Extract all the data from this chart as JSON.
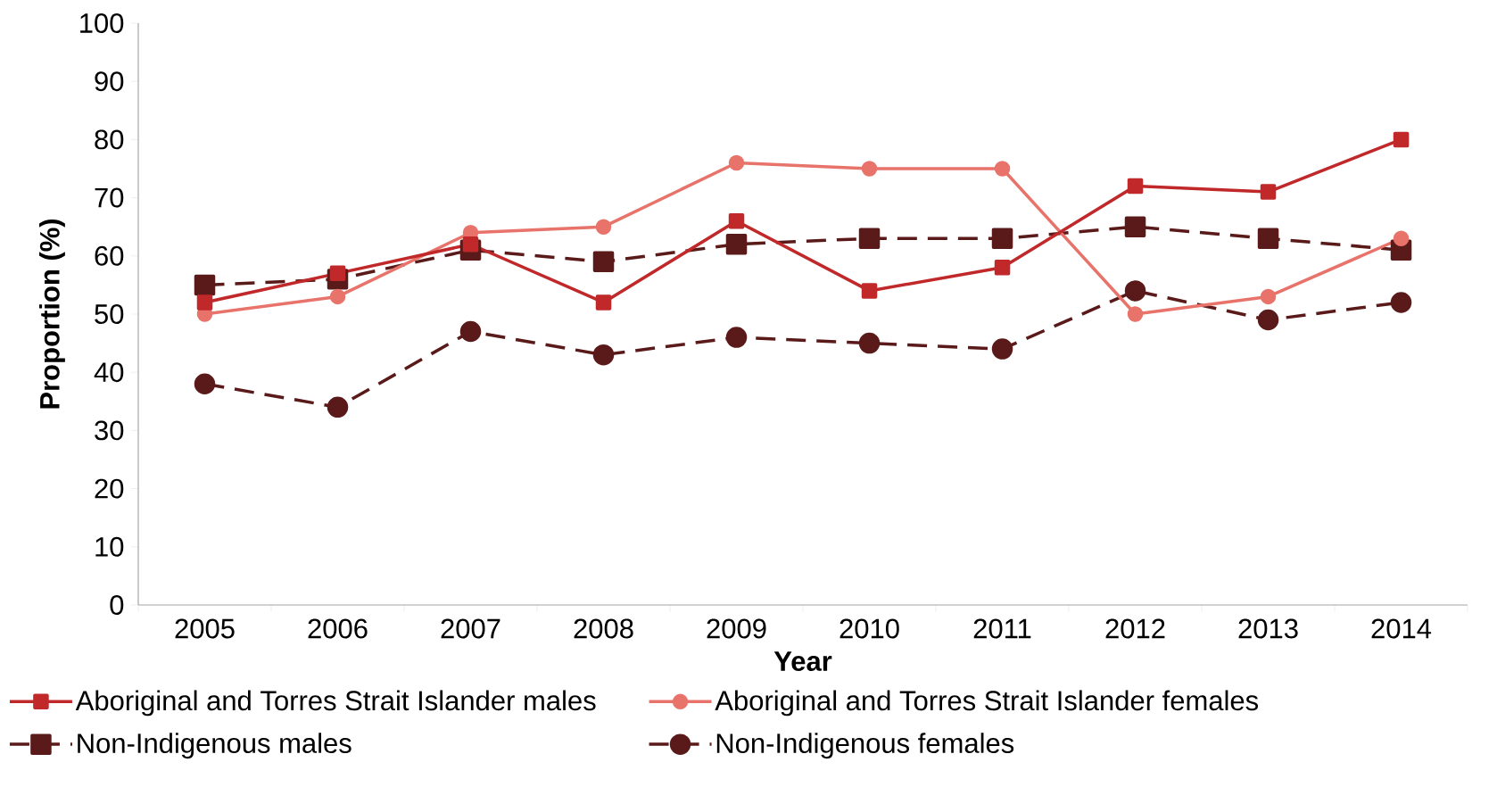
{
  "chart_data": {
    "type": "line",
    "xlabel": "Year",
    "ylabel": "Proportion (%)",
    "categories": [
      "2005",
      "2006",
      "2007",
      "2008",
      "2009",
      "2010",
      "2011",
      "2012",
      "2013",
      "2014"
    ],
    "series": [
      {
        "name": "Aboriginal and Torres Strait Islander males",
        "color": "#c0282a",
        "marker": "square",
        "line_style": "solid",
        "values": [
          52,
          57,
          62,
          52,
          66,
          54,
          58,
          72,
          71,
          80
        ]
      },
      {
        "name": "Aboriginal and Torres Strait Islander females",
        "color": "#e8736a",
        "marker": "circle",
        "line_style": "solid",
        "values": [
          50,
          53,
          64,
          65,
          76,
          75,
          75,
          50,
          53,
          63
        ]
      },
      {
        "name": "Non-Indigenous males",
        "color": "#5a1a1a",
        "marker": "square",
        "line_style": "dashed",
        "values": [
          55,
          56,
          61,
          59,
          62,
          63,
          63,
          65,
          63,
          61
        ]
      },
      {
        "name": "Non-Indigenous females",
        "color": "#5a1a1a",
        "marker": "circle",
        "line_style": "dashed",
        "values": [
          38,
          34,
          47,
          43,
          46,
          45,
          44,
          54,
          49,
          52
        ]
      }
    ],
    "ylim": [
      0,
      100
    ],
    "yticks": [
      0,
      10,
      20,
      30,
      40,
      50,
      60,
      70,
      80,
      90,
      100
    ],
    "grid": false,
    "legend": "bottom"
  }
}
